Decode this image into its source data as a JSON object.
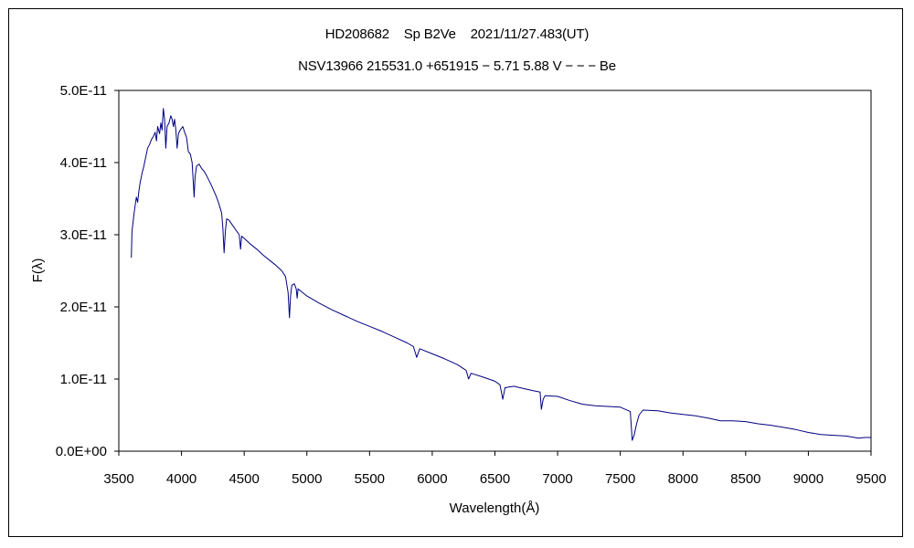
{
  "chart_data": {
    "type": "line",
    "title": "HD208682    Sp B2Ve    2021/11/27.483(UT)",
    "subtitle": "NSV13966 215531.0 +651915 − 5.71 5.88 V − − − Be",
    "xlabel": "Wavelength(Å)",
    "ylabel": "F(λ)",
    "xlim": [
      3500,
      9500
    ],
    "ylim": [
      0,
      5e-11
    ],
    "x_ticks": [
      3500,
      4000,
      4500,
      5000,
      5500,
      6000,
      6500,
      7000,
      7500,
      8000,
      8500,
      9000,
      9500
    ],
    "x_tick_labels": [
      "3500",
      "4000",
      "4500",
      "5000",
      "5500",
      "6000",
      "6500",
      "7000",
      "7500",
      "8000",
      "8500",
      "9000",
      "9500"
    ],
    "y_ticks": [
      0,
      1e-11,
      2e-11,
      3e-11,
      4e-11,
      5e-11
    ],
    "y_tick_labels": [
      "0.0E+00",
      "1.0E-11",
      "2.0E-11",
      "3.0E-11",
      "4.0E-11",
      "5.0E-11"
    ],
    "grid": false,
    "legend": false,
    "series": [
      {
        "color": "#000080",
        "points": [
          [
            3600,
            2.68e-11
          ],
          [
            3605,
            3.05e-11
          ],
          [
            3612,
            3.15e-11
          ],
          [
            3620,
            3.28e-11
          ],
          [
            3630,
            3.4e-11
          ],
          [
            3640,
            3.52e-11
          ],
          [
            3650,
            3.45e-11
          ],
          [
            3660,
            3.6e-11
          ],
          [
            3670,
            3.72e-11
          ],
          [
            3685,
            3.85e-11
          ],
          [
            3700,
            3.95e-11
          ],
          [
            3715,
            4.08e-11
          ],
          [
            3730,
            4.2e-11
          ],
          [
            3745,
            4.25e-11
          ],
          [
            3760,
            4.32e-11
          ],
          [
            3775,
            4.36e-11
          ],
          [
            3790,
            4.42e-11
          ],
          [
            3800,
            4.3e-11
          ],
          [
            3810,
            4.5e-11
          ],
          [
            3825,
            4.4e-11
          ],
          [
            3835,
            4.55e-11
          ],
          [
            3845,
            4.45e-11
          ],
          [
            3855,
            4.75e-11
          ],
          [
            3865,
            4.6e-11
          ],
          [
            3875,
            4.2e-11
          ],
          [
            3885,
            4.5e-11
          ],
          [
            3900,
            4.55e-11
          ],
          [
            3915,
            4.65e-11
          ],
          [
            3925,
            4.6e-11
          ],
          [
            3935,
            4.5e-11
          ],
          [
            3945,
            4.6e-11
          ],
          [
            3955,
            4.45e-11
          ],
          [
            3965,
            4.2e-11
          ],
          [
            3975,
            4.4e-11
          ],
          [
            3990,
            4.45e-11
          ],
          [
            4010,
            4.5e-11
          ],
          [
            4025,
            4.42e-11
          ],
          [
            4040,
            4.35e-11
          ],
          [
            4055,
            4.15e-11
          ],
          [
            4070,
            4.12e-11
          ],
          [
            4085,
            4e-11
          ],
          [
            4095,
            3.7e-11
          ],
          [
            4101,
            3.52e-11
          ],
          [
            4108,
            3.8e-11
          ],
          [
            4120,
            3.95e-11
          ],
          [
            4140,
            3.98e-11
          ],
          [
            4160,
            3.92e-11
          ],
          [
            4180,
            3.88e-11
          ],
          [
            4200,
            3.82e-11
          ],
          [
            4220,
            3.75e-11
          ],
          [
            4240,
            3.68e-11
          ],
          [
            4260,
            3.6e-11
          ],
          [
            4280,
            3.52e-11
          ],
          [
            4300,
            3.42e-11
          ],
          [
            4320,
            3.3e-11
          ],
          [
            4330,
            3.1e-11
          ],
          [
            4340,
            2.75e-11
          ],
          [
            4350,
            3.05e-11
          ],
          [
            4360,
            3.22e-11
          ],
          [
            4380,
            3.2e-11
          ],
          [
            4400,
            3.15e-11
          ],
          [
            4420,
            3.1e-11
          ],
          [
            4440,
            3.05e-11
          ],
          [
            4460,
            3e-11
          ],
          [
            4471,
            2.8e-11
          ],
          [
            4480,
            2.98e-11
          ],
          [
            4500,
            2.95e-11
          ],
          [
            4550,
            2.87e-11
          ],
          [
            4600,
            2.8e-11
          ],
          [
            4650,
            2.72e-11
          ],
          [
            4700,
            2.65e-11
          ],
          [
            4750,
            2.58e-11
          ],
          [
            4800,
            2.5e-11
          ],
          [
            4830,
            2.42e-11
          ],
          [
            4850,
            2.2e-11
          ],
          [
            4861,
            1.85e-11
          ],
          [
            4870,
            2.15e-11
          ],
          [
            4880,
            2.3e-11
          ],
          [
            4900,
            2.32e-11
          ],
          [
            4915,
            2.25e-11
          ],
          [
            4922,
            2.12e-11
          ],
          [
            4930,
            2.25e-11
          ],
          [
            4950,
            2.22e-11
          ],
          [
            5000,
            2.15e-11
          ],
          [
            5050,
            2.1e-11
          ],
          [
            5100,
            2.05e-11
          ],
          [
            5200,
            1.96e-11
          ],
          [
            5300,
            1.88e-11
          ],
          [
            5400,
            1.8e-11
          ],
          [
            5500,
            1.73e-11
          ],
          [
            5600,
            1.66e-11
          ],
          [
            5700,
            1.58e-11
          ],
          [
            5800,
            1.5e-11
          ],
          [
            5850,
            1.45e-11
          ],
          [
            5876,
            1.3e-11
          ],
          [
            5900,
            1.42e-11
          ],
          [
            6000,
            1.35e-11
          ],
          [
            6100,
            1.28e-11
          ],
          [
            6200,
            1.2e-11
          ],
          [
            6270,
            1.12e-11
          ],
          [
            6290,
            1e-11
          ],
          [
            6310,
            1.08e-11
          ],
          [
            6400,
            1.03e-11
          ],
          [
            6500,
            9.7e-12
          ],
          [
            6540,
            9.2e-12
          ],
          [
            6563,
            7.2e-12
          ],
          [
            6580,
            8.8e-12
          ],
          [
            6650,
            9e-12
          ],
          [
            6700,
            8.8e-12
          ],
          [
            6800,
            8.4e-12
          ],
          [
            6860,
            8.2e-12
          ],
          [
            6870,
            5.8e-12
          ],
          [
            6885,
            7.2e-12
          ],
          [
            6900,
            7.7e-12
          ],
          [
            7000,
            7.6e-12
          ],
          [
            7100,
            7e-12
          ],
          [
            7200,
            6.5e-12
          ],
          [
            7300,
            6.3e-12
          ],
          [
            7400,
            6.2e-12
          ],
          [
            7500,
            6.1e-12
          ],
          [
            7580,
            5.5e-12
          ],
          [
            7595,
            1.5e-12
          ],
          [
            7610,
            2.2e-12
          ],
          [
            7630,
            3.8e-12
          ],
          [
            7650,
            5e-12
          ],
          [
            7680,
            5.7e-12
          ],
          [
            7800,
            5.6e-12
          ],
          [
            7900,
            5.3e-12
          ],
          [
            8000,
            5.1e-12
          ],
          [
            8100,
            4.9e-12
          ],
          [
            8200,
            4.6e-12
          ],
          [
            8300,
            4.2e-12
          ],
          [
            8400,
            4.2e-12
          ],
          [
            8500,
            4.1e-12
          ],
          [
            8600,
            3.8e-12
          ],
          [
            8700,
            3.6e-12
          ],
          [
            8800,
            3.3e-12
          ],
          [
            8900,
            3e-12
          ],
          [
            9000,
            2.6e-12
          ],
          [
            9100,
            2.3e-12
          ],
          [
            9200,
            2.2e-12
          ],
          [
            9300,
            2.1e-12
          ],
          [
            9400,
            1.8e-12
          ],
          [
            9450,
            1.9e-12
          ],
          [
            9500,
            1.9e-12
          ]
        ]
      }
    ]
  }
}
